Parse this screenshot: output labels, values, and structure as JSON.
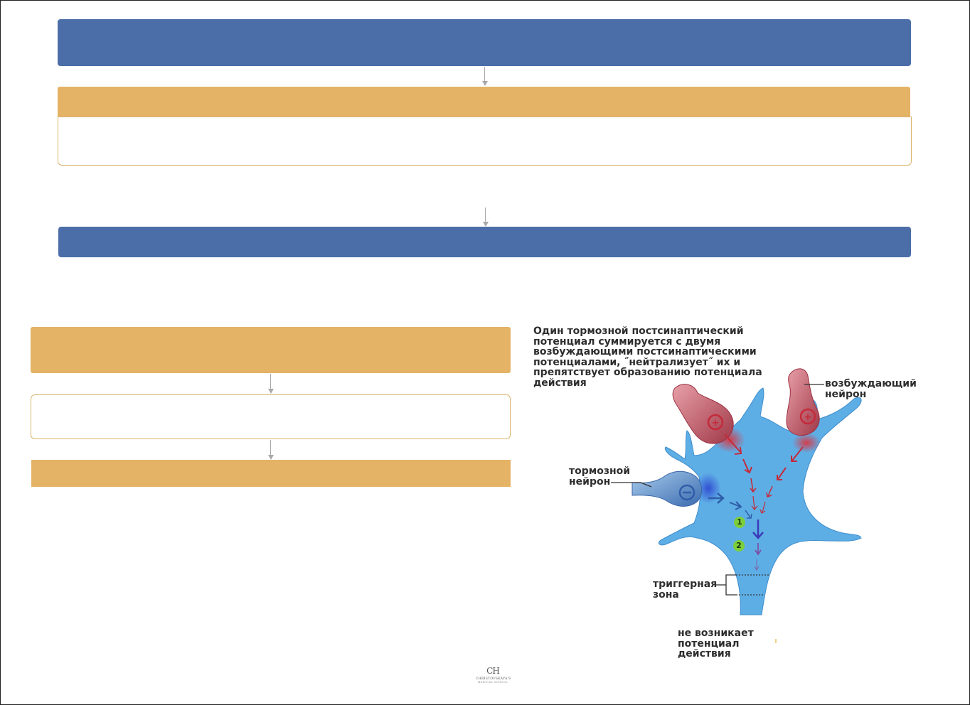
{
  "diagram": {
    "caption": "Один тормозной постсинаптический\nпотенциал суммируется с двумя\nвозбуждающими постсинаптическими\nпотенциалами, ˝нейтрализует˝ их и\nпрепятствует образованию потенциала\nдействия",
    "labels": {
      "excitatory": "возбуждающий нейрон",
      "inhibitory": "тормозной\nнейрон",
      "trigger": "триггерная\nзона",
      "result": "не возникает\nпотенциал\nдействия",
      "marker_1": "1",
      "marker_2": "2"
    },
    "colors": {
      "neuron_body": "#5eaee6",
      "excitatory": "#c0404e",
      "inhibitory": "#4a7ec0",
      "marker": "#7ccf3a",
      "flow_blue": "#4c6ea8",
      "flow_gold": "#e4b366"
    }
  },
  "logo": {
    "monogram": "CH",
    "brand": "CHRISTOVSKAYA'S",
    "subtitle": "MEDICAL SCHOOL"
  }
}
